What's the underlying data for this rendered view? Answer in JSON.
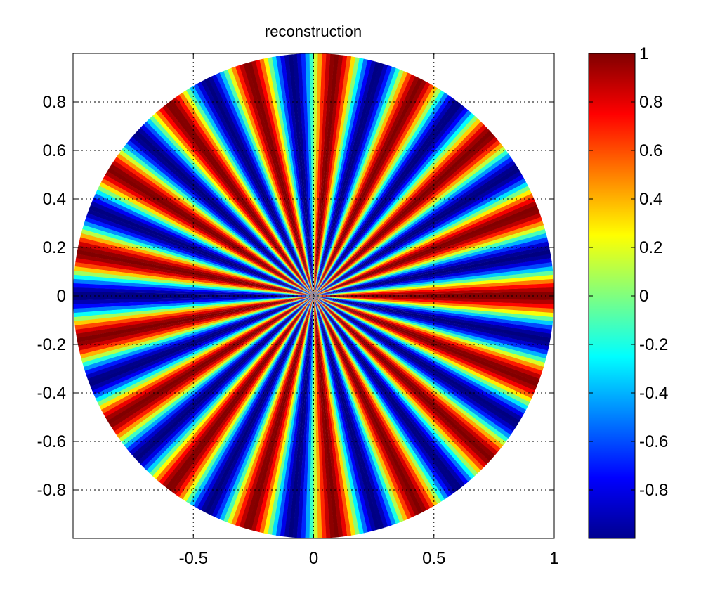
{
  "chart_data": {
    "type": "heatmap",
    "subtype": "polar-surface",
    "title": "reconstruction",
    "xlabel": "",
    "ylabel": "",
    "xlim": [
      -1,
      1
    ],
    "ylim": [
      -1,
      1
    ],
    "x_ticks": [
      {
        "value": -0.5,
        "label": "-0.5"
      },
      {
        "value": 0,
        "label": "0"
      },
      {
        "value": 0.5,
        "label": "0.5"
      },
      {
        "value": 1,
        "label": "1"
      }
    ],
    "y_ticks": [
      {
        "value": 0.8,
        "label": "0.8"
      },
      {
        "value": 0.6,
        "label": "0.6"
      },
      {
        "value": 0.4,
        "label": "0.4"
      },
      {
        "value": 0.2,
        "label": "0.2"
      },
      {
        "value": 0,
        "label": "0"
      },
      {
        "value": -0.2,
        "label": "-0.2"
      },
      {
        "value": -0.4,
        "label": "-0.4"
      },
      {
        "value": -0.6,
        "label": "-0.6"
      },
      {
        "value": -0.8,
        "label": "-0.8"
      }
    ],
    "grid": true,
    "grid_style": "dotted",
    "domain": "unit disk",
    "angular_frequency": 17,
    "surface_function": "cos(17*theta)",
    "colormap": "jet",
    "colorbar": {
      "position": "right",
      "clim": [
        -1,
        1
      ],
      "ticks": [
        {
          "value": 1,
          "label": "1"
        },
        {
          "value": 0.8,
          "label": "0.8"
        },
        {
          "value": 0.6,
          "label": "0.6"
        },
        {
          "value": 0.4,
          "label": "0.4"
        },
        {
          "value": 0.2,
          "label": "0.2"
        },
        {
          "value": 0,
          "label": "0"
        },
        {
          "value": -0.2,
          "label": "-0.2"
        },
        {
          "value": -0.4,
          "label": "-0.4"
        },
        {
          "value": -0.6,
          "label": "-0.6"
        },
        {
          "value": -0.8,
          "label": "-0.8"
        }
      ]
    }
  }
}
